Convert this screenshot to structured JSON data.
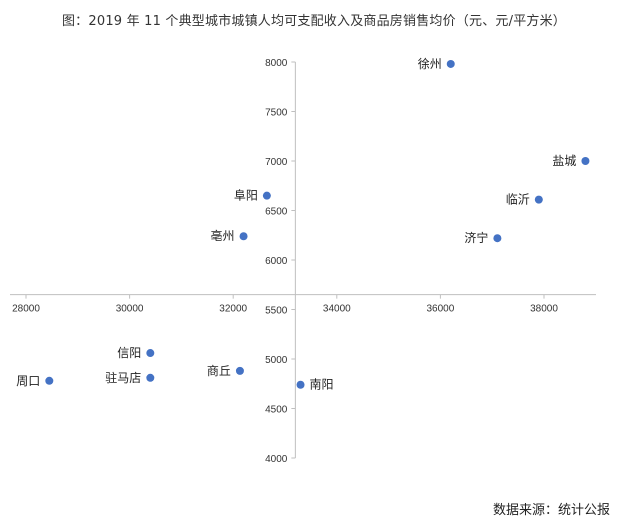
{
  "title": "图：2019 年 11 个典型城市城镇人均可支配收入及商品房销售均价（元、元/平方米）",
  "source": "数据来源：统计公报",
  "chart_data": {
    "type": "scatter",
    "title": "图：2019 年 11 个典型城市城镇人均可支配收入及商品房销售均价（元、元/平方米）",
    "xlabel": "",
    "ylabel": "",
    "xlim": [
      28000,
      39000
    ],
    "ylim": [
      4000,
      8000
    ],
    "x_ticks": [
      28000,
      30000,
      32000,
      34000,
      36000,
      38000
    ],
    "y_ticks": [
      4000,
      4500,
      5000,
      5500,
      6000,
      6500,
      7000,
      7500,
      8000
    ],
    "axis_cross": {
      "x": 33200,
      "y": 5650
    },
    "grid": false,
    "marker_color": "#4472C4",
    "points": [
      {
        "label": "徐州",
        "x": 36200,
        "y": 7980,
        "label_pos": "left"
      },
      {
        "label": "盐城",
        "x": 38800,
        "y": 7000,
        "label_pos": "left"
      },
      {
        "label": "阜阳",
        "x": 32650,
        "y": 6650,
        "label_pos": "left"
      },
      {
        "label": "临沂",
        "x": 37900,
        "y": 6610,
        "label_pos": "left"
      },
      {
        "label": "亳州",
        "x": 32200,
        "y": 6240,
        "label_pos": "left"
      },
      {
        "label": "济宁",
        "x": 37100,
        "y": 6220,
        "label_pos": "left"
      },
      {
        "label": "信阳",
        "x": 30400,
        "y": 5060,
        "label_pos": "left"
      },
      {
        "label": "商丘",
        "x": 32130,
        "y": 4880,
        "label_pos": "left"
      },
      {
        "label": "驻马店",
        "x": 30400,
        "y": 4810,
        "label_pos": "left"
      },
      {
        "label": "周口",
        "x": 28450,
        "y": 4780,
        "label_pos": "left"
      },
      {
        "label": "南阳",
        "x": 33300,
        "y": 4740,
        "label_pos": "right"
      }
    ]
  }
}
